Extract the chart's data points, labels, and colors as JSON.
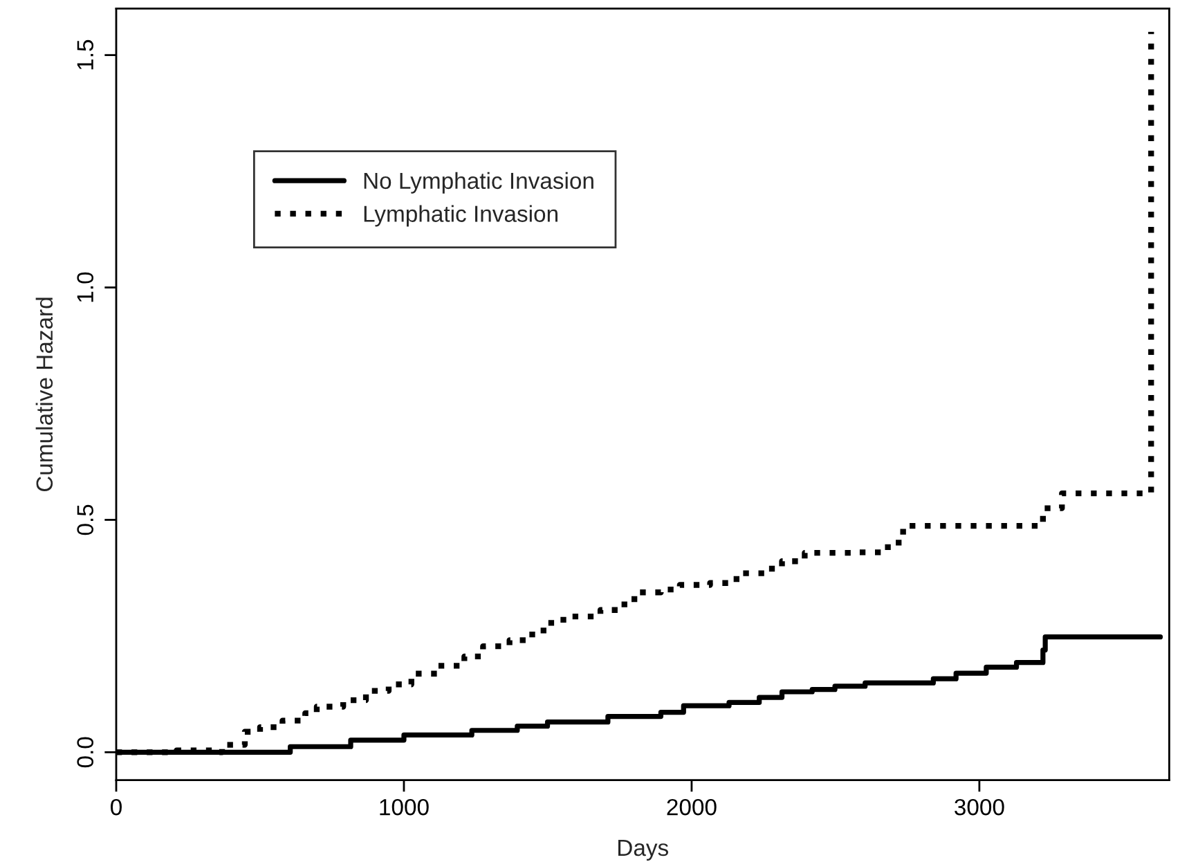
{
  "chart_data": {
    "type": "step",
    "xlabel": "Days",
    "ylabel": "Cumulative Hazard",
    "xlim": [
      0,
      3660
    ],
    "xticks": [
      0,
      1000,
      2000,
      3000
    ],
    "ylim": [
      -0.06,
      1.6
    ],
    "yticks": [
      {
        "value": 0,
        "label": "0.0"
      },
      0.5,
      {
        "value": 1,
        "label": "1.0"
      },
      1.5
    ],
    "legend": "top left",
    "grid": false,
    "series": [
      {
        "name": "No Lymphatic Invasion",
        "color": "#000000",
        "line_style": "solid",
        "x": [
          0,
          394,
          605,
          815,
          1000,
          1236,
          1394,
          1499,
          1709,
          1893,
          1972,
          2130,
          2235,
          2314,
          2419,
          2498,
          2603,
          2761,
          2840,
          2919,
          3024,
          3129,
          3208,
          3221,
          3229,
          3629
        ],
        "values": [
          0,
          0,
          0.012,
          0.026,
          0.037,
          0.047,
          0.056,
          0.065,
          0.077,
          0.086,
          0.1,
          0.107,
          0.118,
          0.13,
          0.135,
          0.142,
          0.149,
          0.149,
          0.158,
          0.17,
          0.183,
          0.193,
          0.193,
          0.22,
          0.248,
          0.248
        ]
      },
      {
        "name": "Lymphatic Invasion",
        "color": "#000000",
        "line_style": "dotted",
        "x": [
          0,
          210,
          342,
          368,
          447,
          500,
          578,
          657,
          697,
          789,
          868,
          947,
          1026,
          1118,
          1210,
          1275,
          1367,
          1446,
          1512,
          1565,
          1683,
          1749,
          1801,
          1893,
          1959,
          2064,
          2156,
          2261,
          2314,
          2393,
          2577,
          2682,
          2735,
          3208,
          3221,
          3287,
          3597,
          3597
        ],
        "values": [
          0,
          0.004,
          0,
          0.016,
          0.044,
          0.054,
          0.068,
          0.084,
          0.098,
          0.112,
          0.132,
          0.146,
          0.169,
          0.186,
          0.206,
          0.228,
          0.241,
          0.262,
          0.285,
          0.292,
          0.306,
          0.318,
          0.344,
          0.35,
          0.36,
          0.364,
          0.385,
          0.395,
          0.411,
          0.429,
          0.43,
          0.451,
          0.487,
          0.487,
          0.525,
          0.557,
          0.557,
          1.55
        ]
      }
    ]
  }
}
